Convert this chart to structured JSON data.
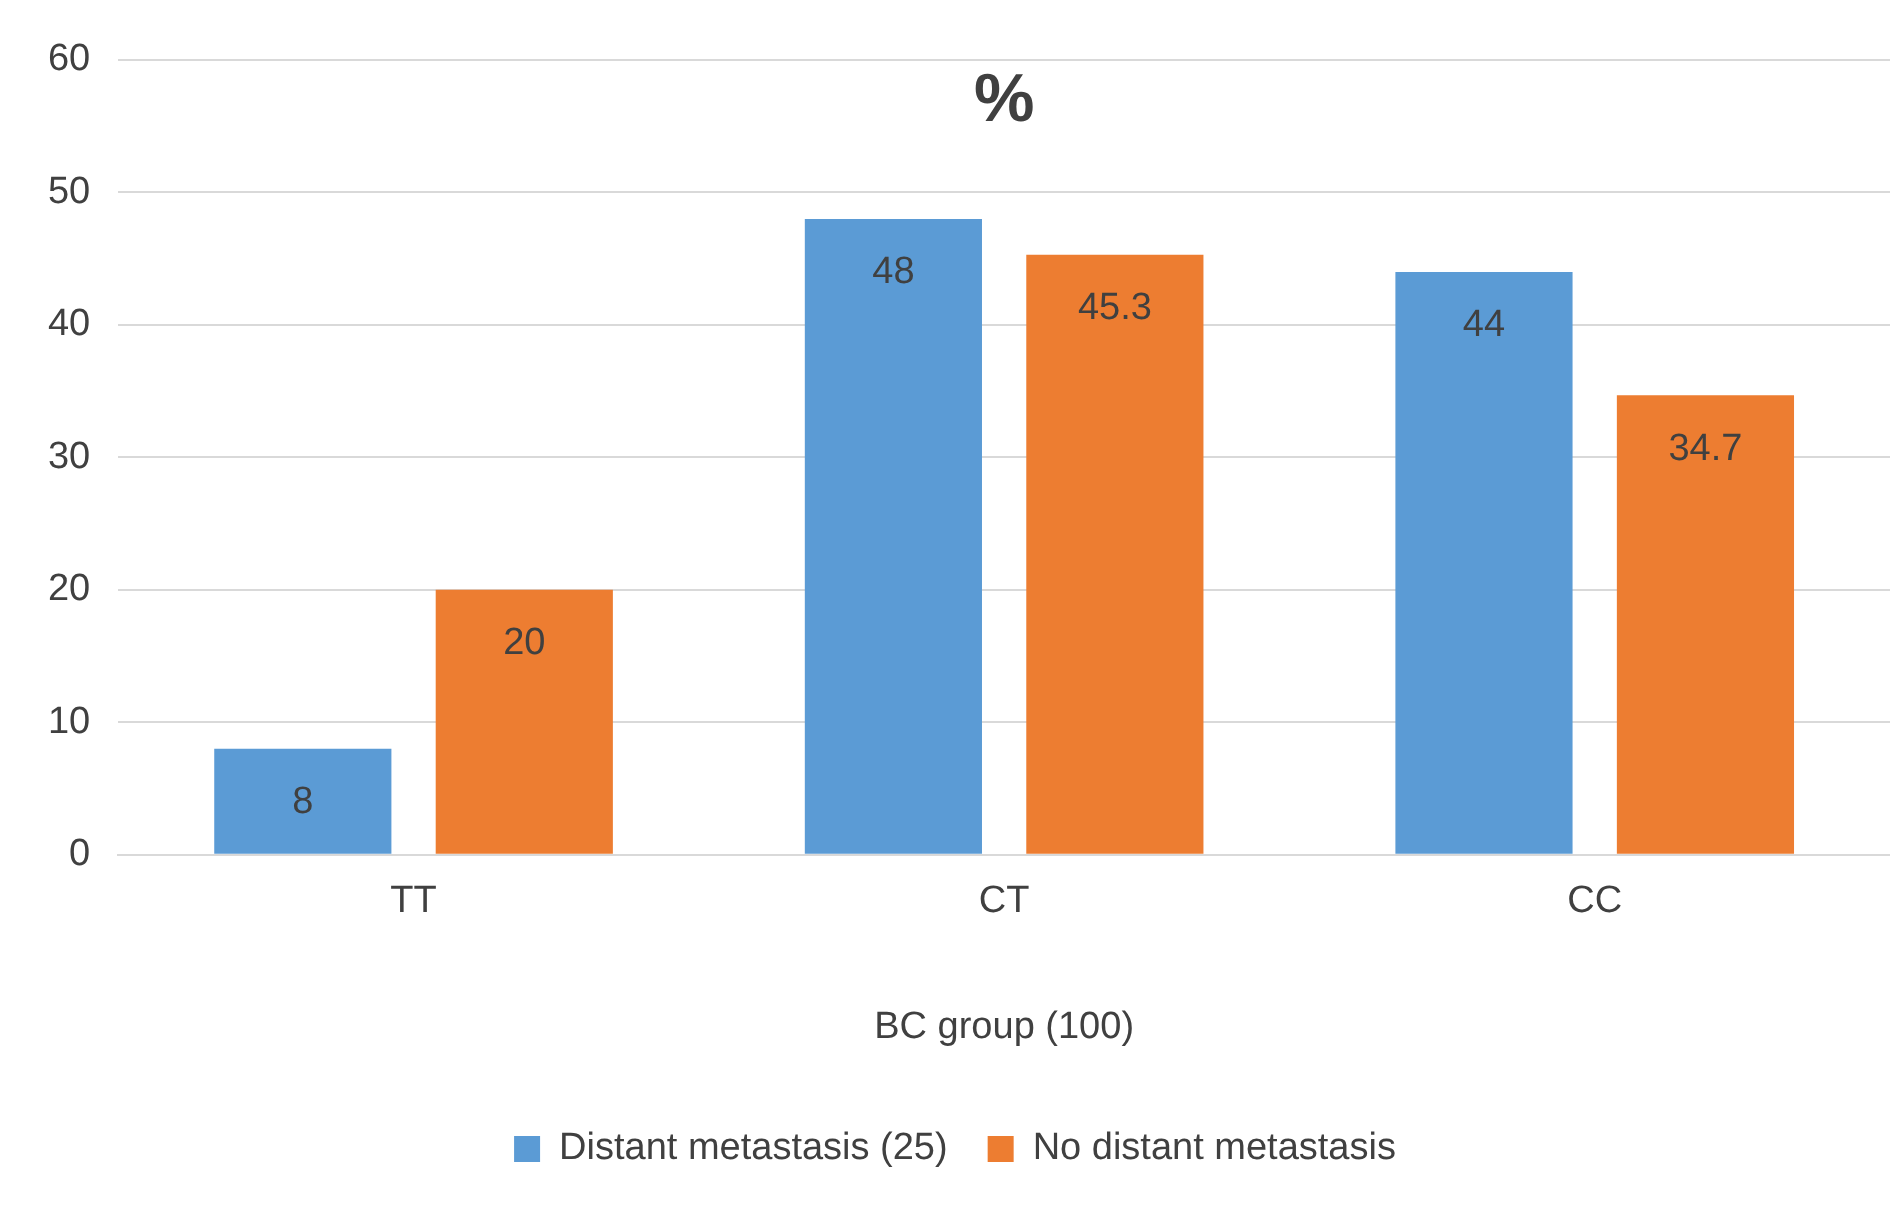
{
  "chart_data": {
    "type": "bar",
    "title": "%",
    "xlabel": "BC group (100)",
    "categories": [
      "TT",
      "CT",
      "CC"
    ],
    "series": [
      {
        "name": "Distant metastasis (25)",
        "color": "#5b9bd5",
        "values": [
          8,
          48,
          44
        ]
      },
      {
        "name": "No distant metastasis",
        "color": "#ed7d31",
        "values": [
          20,
          45.3,
          34.7
        ]
      }
    ],
    "ylim": [
      0,
      60
    ],
    "yticks": [
      0,
      10,
      20,
      30,
      40,
      50,
      60
    ],
    "grid": "y",
    "legend": "bottom",
    "data_labels": true
  }
}
